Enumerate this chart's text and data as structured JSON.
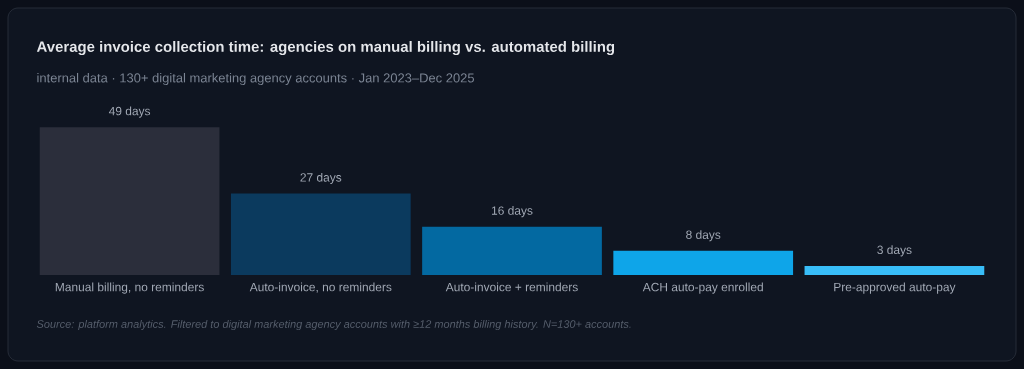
{
  "chart_data": {
    "type": "bar",
    "title": "Average invoice collection time: agencies on manual billing vs. automated billing",
    "subtitle": "internal data · 130+ digital marketing agency accounts · Jan 2023–Dec 2025",
    "categories": [
      "Manual billing, no reminders",
      "Auto-invoice, no reminders",
      "Auto-invoice + reminders",
      "ACH auto-pay enrolled",
      "Pre-approved auto-pay"
    ],
    "values": [
      49,
      27,
      16,
      8,
      3
    ],
    "colors": [
      "#2b2e3b",
      "#0b3a5e",
      "#0369a1",
      "#0ea5e9",
      "#38bdf8"
    ],
    "value_labels": [
      "49 days",
      "27 days",
      "16 days",
      "8 days",
      "3 days"
    ],
    "annotations": [
      "Source: platform analytics. Filtered to digital marketing agency accounts with ≥12 months billing history. N=130+ accounts."
    ]
  }
}
